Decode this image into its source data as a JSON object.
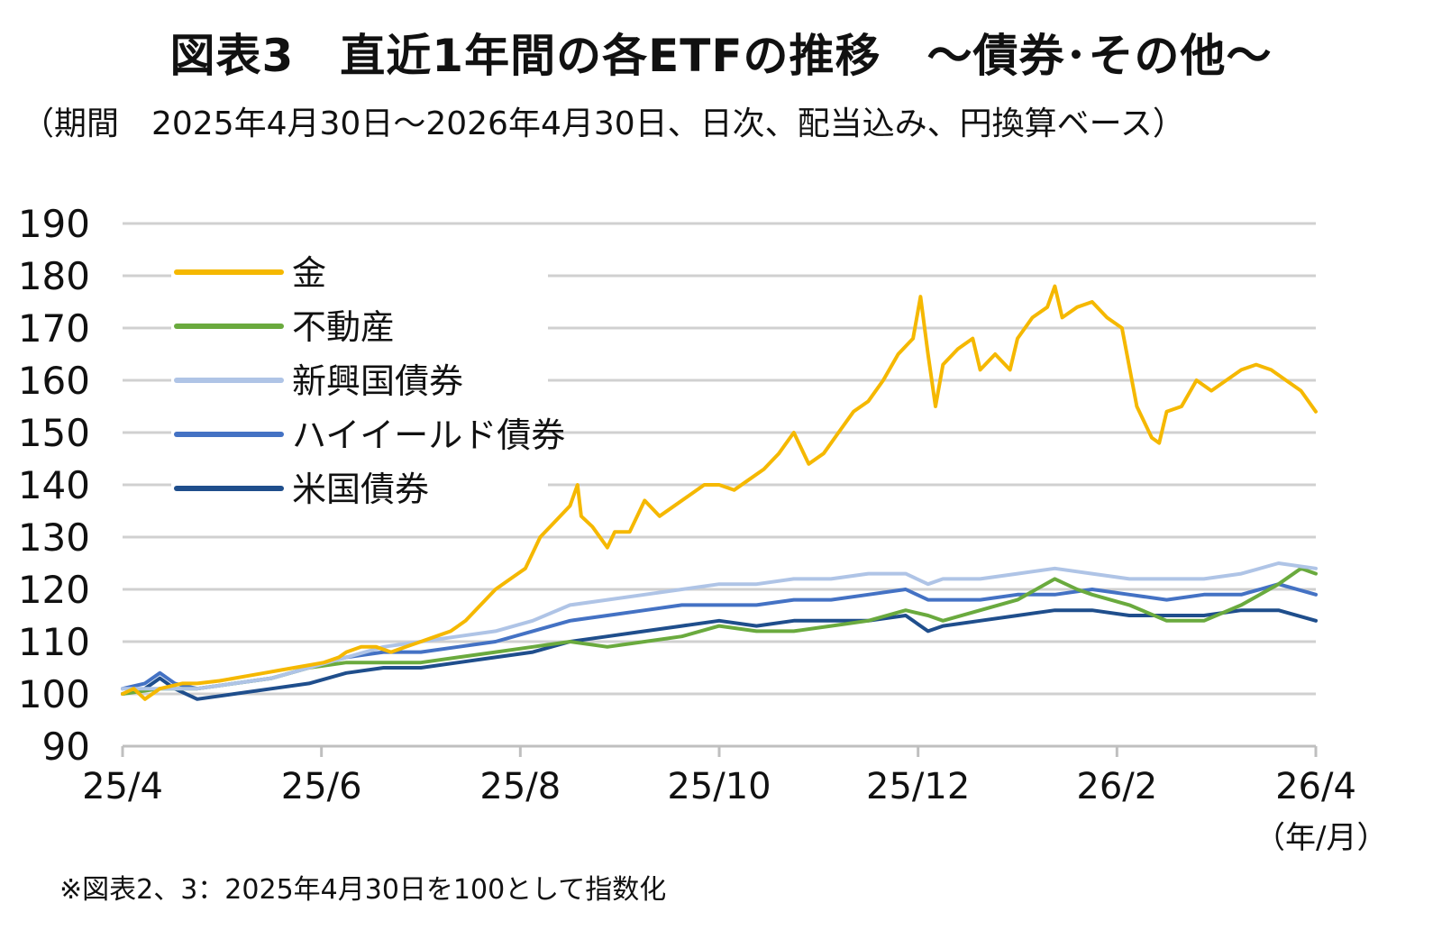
{
  "header": {
    "title": "図表3　直近1年間の各ETFの推移　～債券･その他～",
    "subtitle": "（期間　2025年4月30日～2026年4月30日、日次、配当込み、円換算ベース）"
  },
  "footer": {
    "note": "※図表2、3：2025年4月30日を100として指数化",
    "unit": "（年/月）"
  },
  "chart_data": {
    "type": "line",
    "title": "図表3　直近1年間の各ETFの推移　～債券･その他～",
    "x_tick_labels": [
      "25/4",
      "25/6",
      "25/8",
      "25/10",
      "25/12",
      "26/2",
      "26/4"
    ],
    "y_tick_labels": [
      "190",
      "180",
      "170",
      "160",
      "150",
      "140",
      "130",
      "120",
      "110",
      "100",
      "90"
    ],
    "ylim": [
      90,
      190
    ],
    "grid": true,
    "legend_position": "top-left",
    "x_unit_label": "（年/月）",
    "series": [
      {
        "name": "金",
        "color": "#F5B800",
        "points": [
          [
            0,
            100
          ],
          [
            0.15,
            101
          ],
          [
            0.3,
            99
          ],
          [
            0.5,
            101
          ],
          [
            0.8,
            102
          ],
          [
            1,
            102
          ],
          [
            1.3,
            102.5
          ],
          [
            1.5,
            103
          ],
          [
            1.7,
            103.5
          ],
          [
            1.9,
            104
          ],
          [
            2.1,
            104.5
          ],
          [
            2.3,
            105
          ],
          [
            2.5,
            105.5
          ],
          [
            2.7,
            106
          ],
          [
            2.9,
            107
          ],
          [
            3,
            108
          ],
          [
            3.2,
            109
          ],
          [
            3.4,
            109
          ],
          [
            3.6,
            108
          ],
          [
            3.8,
            109
          ],
          [
            4,
            110
          ],
          [
            4.2,
            111
          ],
          [
            4.4,
            112
          ],
          [
            4.6,
            114
          ],
          [
            4.8,
            117
          ],
          [
            5,
            120
          ],
          [
            5.2,
            122
          ],
          [
            5.4,
            124
          ],
          [
            5.6,
            130
          ],
          [
            5.8,
            133
          ],
          [
            6,
            136
          ],
          [
            6.1,
            140
          ],
          [
            6.15,
            134
          ],
          [
            6.3,
            132
          ],
          [
            6.5,
            128
          ],
          [
            6.6,
            131
          ],
          [
            6.8,
            131
          ],
          [
            7,
            137
          ],
          [
            7.2,
            134
          ],
          [
            7.4,
            136
          ],
          [
            7.6,
            138
          ],
          [
            7.8,
            140
          ],
          [
            8,
            140
          ],
          [
            8.2,
            139
          ],
          [
            8.4,
            141
          ],
          [
            8.6,
            143
          ],
          [
            8.8,
            146
          ],
          [
            9,
            150
          ],
          [
            9.2,
            144
          ],
          [
            9.4,
            146
          ],
          [
            9.6,
            150
          ],
          [
            9.8,
            154
          ],
          [
            10,
            156
          ],
          [
            10.2,
            160
          ],
          [
            10.4,
            165
          ],
          [
            10.6,
            168
          ],
          [
            10.7,
            176
          ],
          [
            10.8,
            165
          ],
          [
            10.9,
            155
          ],
          [
            11,
            163
          ],
          [
            11.2,
            166
          ],
          [
            11.4,
            168
          ],
          [
            11.5,
            162
          ],
          [
            11.7,
            165
          ],
          [
            11.9,
            162
          ],
          [
            12,
            168
          ],
          [
            12.2,
            172
          ],
          [
            12.4,
            174
          ],
          [
            12.5,
            178
          ],
          [
            12.6,
            172
          ],
          [
            12.8,
            174
          ],
          [
            13,
            175
          ],
          [
            13.2,
            172
          ],
          [
            13.4,
            170
          ],
          [
            13.6,
            155
          ],
          [
            13.8,
            149
          ],
          [
            13.9,
            148
          ],
          [
            14,
            154
          ],
          [
            14.2,
            155
          ],
          [
            14.4,
            160
          ],
          [
            14.6,
            158
          ],
          [
            14.8,
            160
          ],
          [
            15,
            162
          ],
          [
            15.2,
            163
          ],
          [
            15.4,
            162
          ],
          [
            15.6,
            160
          ],
          [
            15.8,
            158
          ],
          [
            16,
            154
          ]
        ]
      },
      {
        "name": "不動産",
        "color": "#6AAA3E",
        "points": [
          [
            0,
            100
          ],
          [
            0.5,
            101
          ],
          [
            1,
            101
          ],
          [
            1.5,
            102
          ],
          [
            2,
            103
          ],
          [
            2.5,
            105
          ],
          [
            3,
            106
          ],
          [
            3.5,
            106
          ],
          [
            4,
            106
          ],
          [
            4.5,
            107
          ],
          [
            5,
            108
          ],
          [
            5.5,
            109
          ],
          [
            6,
            110
          ],
          [
            6.5,
            109
          ],
          [
            7,
            110
          ],
          [
            7.5,
            111
          ],
          [
            8,
            113
          ],
          [
            8.5,
            112
          ],
          [
            9,
            112
          ],
          [
            9.5,
            113
          ],
          [
            10,
            114
          ],
          [
            10.5,
            116
          ],
          [
            10.8,
            115
          ],
          [
            11,
            114
          ],
          [
            11.5,
            116
          ],
          [
            12,
            118
          ],
          [
            12.5,
            122
          ],
          [
            12.8,
            120
          ],
          [
            13,
            119
          ],
          [
            13.5,
            117
          ],
          [
            14,
            114
          ],
          [
            14.5,
            114
          ],
          [
            15,
            117
          ],
          [
            15.5,
            121
          ],
          [
            15.8,
            124
          ],
          [
            16,
            123
          ]
        ]
      },
      {
        "name": "新興国債券",
        "color": "#AFC4E6",
        "points": [
          [
            0,
            101
          ],
          [
            0.5,
            101
          ],
          [
            1,
            101
          ],
          [
            1.5,
            102
          ],
          [
            2,
            103
          ],
          [
            2.5,
            105
          ],
          [
            3,
            107
          ],
          [
            3.5,
            109
          ],
          [
            4,
            110
          ],
          [
            4.5,
            111
          ],
          [
            5,
            112
          ],
          [
            5.5,
            114
          ],
          [
            6,
            117
          ],
          [
            6.5,
            118
          ],
          [
            7,
            119
          ],
          [
            7.5,
            120
          ],
          [
            8,
            121
          ],
          [
            8.5,
            121
          ],
          [
            9,
            122
          ],
          [
            9.5,
            122
          ],
          [
            10,
            123
          ],
          [
            10.5,
            123
          ],
          [
            10.8,
            121
          ],
          [
            11,
            122
          ],
          [
            11.5,
            122
          ],
          [
            12,
            123
          ],
          [
            12.5,
            124
          ],
          [
            13,
            123
          ],
          [
            13.5,
            122
          ],
          [
            14,
            122
          ],
          [
            14.5,
            122
          ],
          [
            15,
            123
          ],
          [
            15.5,
            125
          ],
          [
            16,
            124
          ]
        ]
      },
      {
        "name": "ハイイールド債券",
        "color": "#4472C4",
        "points": [
          [
            0,
            101
          ],
          [
            0.3,
            102
          ],
          [
            0.5,
            104
          ],
          [
            0.7,
            102
          ],
          [
            1,
            101
          ],
          [
            1.5,
            102
          ],
          [
            2,
            103
          ],
          [
            2.5,
            105
          ],
          [
            3,
            107
          ],
          [
            3.5,
            108
          ],
          [
            4,
            108
          ],
          [
            4.5,
            109
          ],
          [
            5,
            110
          ],
          [
            5.5,
            112
          ],
          [
            6,
            114
          ],
          [
            6.5,
            115
          ],
          [
            7,
            116
          ],
          [
            7.5,
            117
          ],
          [
            8,
            117
          ],
          [
            8.5,
            117
          ],
          [
            9,
            118
          ],
          [
            9.5,
            118
          ],
          [
            10,
            119
          ],
          [
            10.5,
            120
          ],
          [
            10.8,
            118
          ],
          [
            11,
            118
          ],
          [
            11.5,
            118
          ],
          [
            12,
            119
          ],
          [
            12.5,
            119
          ],
          [
            13,
            120
          ],
          [
            13.5,
            119
          ],
          [
            14,
            118
          ],
          [
            14.5,
            119
          ],
          [
            15,
            119
          ],
          [
            15.5,
            121
          ],
          [
            16,
            119
          ]
        ]
      },
      {
        "name": "米国債券",
        "color": "#1F4E8C",
        "points": [
          [
            0,
            100
          ],
          [
            0.3,
            101
          ],
          [
            0.5,
            103
          ],
          [
            0.7,
            101
          ],
          [
            1,
            99
          ],
          [
            1.5,
            100
          ],
          [
            2,
            101
          ],
          [
            2.5,
            102
          ],
          [
            3,
            104
          ],
          [
            3.5,
            105
          ],
          [
            4,
            105
          ],
          [
            4.5,
            106
          ],
          [
            5,
            107
          ],
          [
            5.5,
            108
          ],
          [
            6,
            110
          ],
          [
            6.5,
            111
          ],
          [
            7,
            112
          ],
          [
            7.5,
            113
          ],
          [
            8,
            114
          ],
          [
            8.5,
            113
          ],
          [
            9,
            114
          ],
          [
            9.5,
            114
          ],
          [
            10,
            114
          ],
          [
            10.5,
            115
          ],
          [
            10.8,
            112
          ],
          [
            11,
            113
          ],
          [
            11.5,
            114
          ],
          [
            12,
            115
          ],
          [
            12.5,
            116
          ],
          [
            13,
            116
          ],
          [
            13.5,
            115
          ],
          [
            14,
            115
          ],
          [
            14.5,
            115
          ],
          [
            15,
            116
          ],
          [
            15.5,
            116
          ],
          [
            16,
            114
          ]
        ]
      }
    ]
  }
}
